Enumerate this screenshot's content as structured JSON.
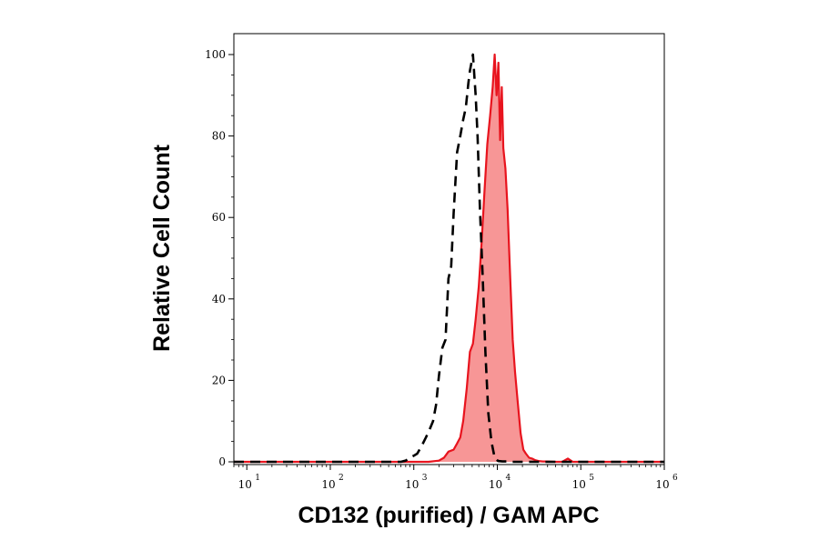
{
  "chart_data": {
    "type": "area",
    "xlabel": "CD132 (purified) / GAM APC",
    "ylabel": "Relative Cell Count",
    "x_scale": "log",
    "xlim": [
      7,
      1000000
    ],
    "ylim": [
      0,
      100
    ],
    "x_ticks": [
      {
        "base": "10",
        "exp": "1",
        "value": 10
      },
      {
        "base": "10",
        "exp": "2",
        "value": 100
      },
      {
        "base": "10",
        "exp": "3",
        "value": 1000
      },
      {
        "base": "10",
        "exp": "4",
        "value": 10000
      },
      {
        "base": "10",
        "exp": "5",
        "value": 100000
      },
      {
        "base": "10",
        "exp": "6",
        "value": 1000000
      }
    ],
    "y_ticks": [
      "0",
      "20",
      "40",
      "60",
      "80",
      "100"
    ],
    "grid": false,
    "legend": "none",
    "series": [
      {
        "style": "filled",
        "color": "#e8141e",
        "fill": "#f79696",
        "x": [
          7,
          1000,
          1500,
          2000,
          2300,
          2600,
          3000,
          3300,
          3600,
          3900,
          4300,
          4700,
          5100,
          5500,
          6000,
          6500,
          7000,
          7600,
          8200,
          8800,
          9300,
          9800,
          10300,
          10800,
          11300,
          11800,
          12500,
          13300,
          14300,
          15300,
          16300,
          17500,
          19000,
          20500,
          22000,
          24000,
          26000,
          28500,
          31000,
          35000,
          40000,
          50000,
          60000,
          70000,
          80000,
          90000,
          1000000
        ],
        "y": [
          0,
          0,
          0,
          0.3,
          1,
          2.5,
          3,
          4.5,
          6,
          10,
          18,
          27,
          29,
          35,
          43,
          54,
          66,
          78,
          85,
          92,
          100,
          90,
          98,
          79,
          92,
          77,
          72,
          62,
          45,
          30,
          22,
          15,
          7,
          3,
          2,
          1,
          0.8,
          0.4,
          0.2,
          0.1,
          0.1,
          0,
          0,
          0.8,
          0,
          0,
          0
        ]
      },
      {
        "style": "dashed",
        "color": "#000000",
        "x": [
          7,
          700,
          800,
          900,
          1000,
          1100,
          1250,
          1400,
          1550,
          1700,
          1850,
          2000,
          2200,
          2400,
          2600,
          2800,
          3000,
          3300,
          3600,
          3900,
          4200,
          4500,
          4700,
          4900,
          5100,
          5300,
          5500,
          5800,
          6200,
          6700,
          7200,
          7800,
          8500,
          9300,
          10200,
          11500,
          13000,
          15000,
          20000,
          1000000
        ],
        "y": [
          0,
          0,
          0.3,
          1,
          1.5,
          2,
          4,
          6,
          8,
          10,
          14,
          21,
          28,
          30,
          45,
          48,
          61,
          76,
          80,
          84,
          87,
          93,
          96,
          98,
          100,
          95,
          90,
          80,
          62,
          45,
          27,
          12,
          5,
          1,
          0.2,
          0.1,
          0.1,
          0,
          0,
          0
        ]
      }
    ]
  }
}
